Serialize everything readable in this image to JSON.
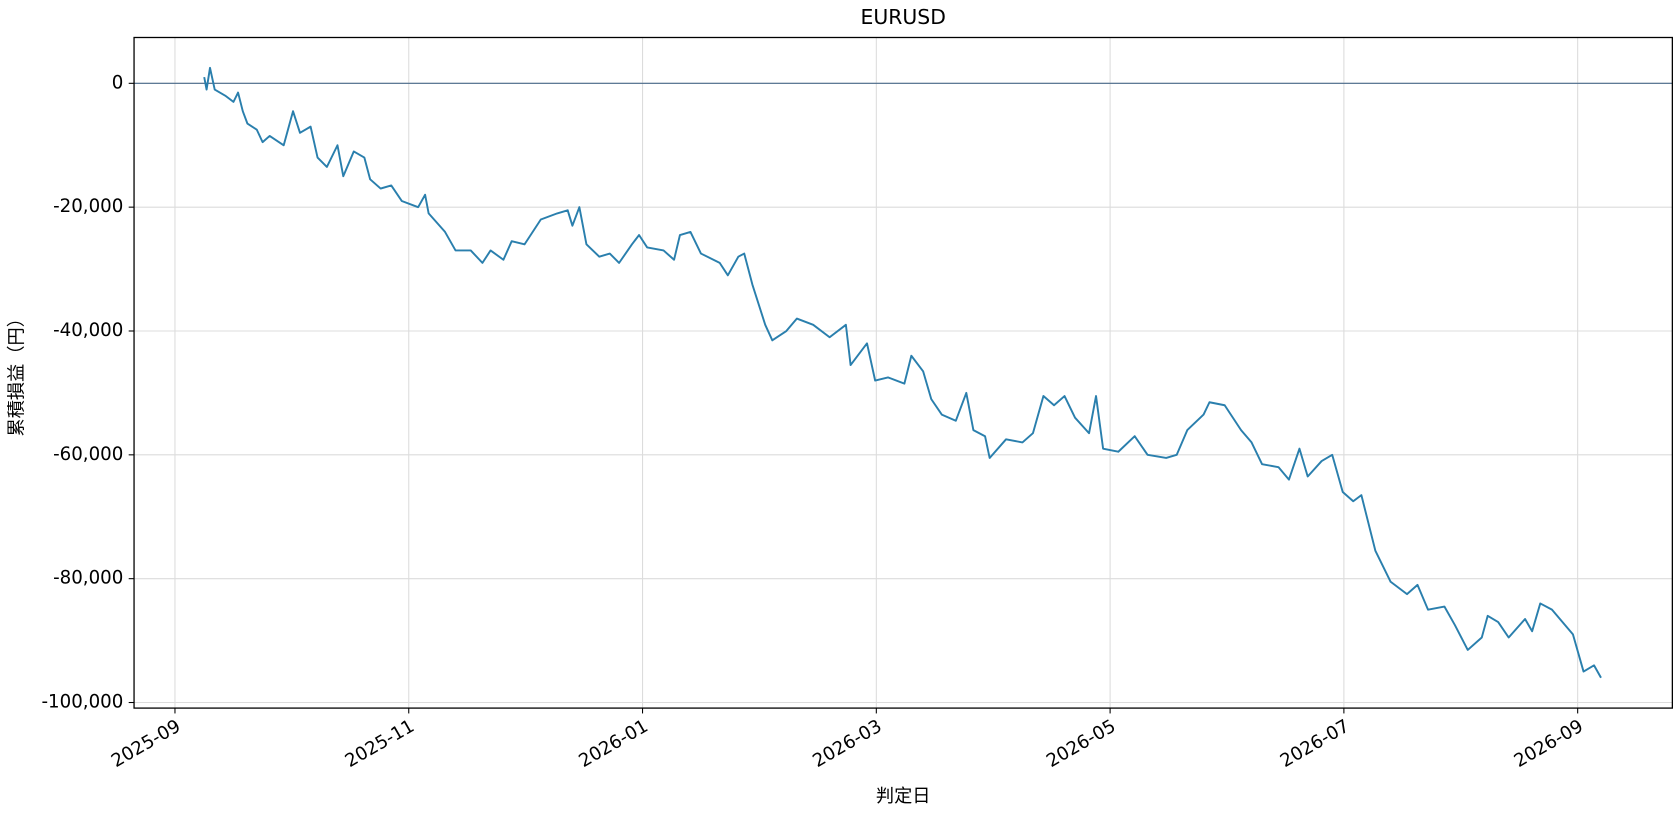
{
  "chart_data": {
    "type": "line",
    "title": "EURUSD",
    "xlabel": "判定日",
    "ylabel": "累積損益（円）",
    "x": [
      0.25,
      0.27,
      0.3,
      0.34,
      0.43,
      0.5,
      0.54,
      0.58,
      0.62,
      0.7,
      0.75,
      0.81,
      0.93,
      1.01,
      1.07,
      1.16,
      1.22,
      1.3,
      1.39,
      1.44,
      1.53,
      1.62,
      1.67,
      1.76,
      1.85,
      1.94,
      2.08,
      2.14,
      2.17,
      2.31,
      2.4,
      2.53,
      2.63,
      2.7,
      2.81,
      2.88,
      2.99,
      3.13,
      3.27,
      3.36,
      3.4,
      3.46,
      3.52,
      3.63,
      3.72,
      3.8,
      3.91,
      3.97,
      4.04,
      4.18,
      4.27,
      4.32,
      4.41,
      4.5,
      4.66,
      4.73,
      4.82,
      4.87,
      4.94,
      5.05,
      5.11,
      5.23,
      5.32,
      5.46,
      5.6,
      5.74,
      5.78,
      5.92,
      5.99,
      6.1,
      6.24,
      6.3,
      6.4,
      6.47,
      6.56,
      6.68,
      6.77,
      6.83,
      6.93,
      6.97,
      7.11,
      7.25,
      7.34,
      7.43,
      7.52,
      7.61,
      7.7,
      7.82,
      7.88,
      7.94,
      8.07,
      8.21,
      8.32,
      8.48,
      8.57,
      8.66,
      8.8,
      8.85,
      8.98,
      9.12,
      9.21,
      9.3,
      9.44,
      9.53,
      9.62,
      9.69,
      9.81,
      9.9,
      9.99,
      10.08,
      10.15,
      10.27,
      10.4,
      10.54,
      10.63,
      10.72,
      10.86,
      10.95,
      11.06,
      11.18,
      11.23,
      11.32,
      11.41,
      11.55,
      11.61,
      11.68,
      11.78,
      11.96,
      12.05,
      12.14,
      12.2
    ],
    "series": [
      {
        "name": "EURUSD",
        "color": "#2a7fad",
        "values": [
          1000,
          -1000,
          2500,
          -1000,
          -2000,
          -3000,
          -1500,
          -4500,
          -6500,
          -7500,
          -9500,
          -8500,
          -10000,
          -4500,
          -8000,
          -7000,
          -12000,
          -13500,
          -10000,
          -15000,
          -11000,
          -12000,
          -15500,
          -17000,
          -16500,
          -19000,
          -20000,
          -18000,
          -21000,
          -24000,
          -27000,
          -27000,
          -29000,
          -27000,
          -28500,
          -25500,
          -26000,
          -22000,
          -21000,
          -20500,
          -23000,
          -20000,
          -26000,
          -28000,
          -27500,
          -29000,
          -26000,
          -24500,
          -26500,
          -27000,
          -28500,
          -24500,
          -24000,
          -27500,
          -29000,
          -31000,
          -28000,
          -27500,
          -32500,
          -39000,
          -41500,
          -40000,
          -38000,
          -39000,
          -41000,
          -39000,
          -45500,
          -42000,
          -48000,
          -47500,
          -48500,
          -44000,
          -46500,
          -51000,
          -53500,
          -54500,
          -50000,
          -56000,
          -57000,
          -60500,
          -57500,
          -58000,
          -56500,
          -50500,
          -52000,
          -50500,
          -54000,
          -56500,
          -50500,
          -59000,
          -59500,
          -57000,
          -60000,
          -60500,
          -60000,
          -56000,
          -53500,
          -51500,
          -52000,
          -56000,
          -58000,
          -61500,
          -62000,
          -64000,
          -59000,
          -63500,
          -61000,
          -60000,
          -66000,
          -67500,
          -66500,
          -75500,
          -80500,
          -82500,
          -81000,
          -85000,
          -84500,
          -87500,
          -91500,
          -89500,
          -86000,
          -87000,
          -89500,
          -86500,
          -88500,
          -84000,
          -85000,
          -89000,
          -95000,
          -94000,
          -96000
        ]
      }
    ],
    "xlim": [
      -0.35,
      12.81
    ],
    "xticks": [
      {
        "value": 0,
        "label": "2025-09"
      },
      {
        "value": 2,
        "label": "2025-11"
      },
      {
        "value": 4,
        "label": "2026-01"
      },
      {
        "value": 6,
        "label": "2026-03"
      },
      {
        "value": 8,
        "label": "2026-05"
      },
      {
        "value": 10,
        "label": "2026-07"
      },
      {
        "value": 12,
        "label": "2026-09"
      }
    ],
    "ylim": [
      -100900,
      7400
    ],
    "yticks": [
      {
        "value": -100000,
        "label": "-100,000"
      },
      {
        "value": -80000,
        "label": "-80,000"
      },
      {
        "value": -60000,
        "label": "-60,000"
      },
      {
        "value": -40000,
        "label": "-40,000"
      },
      {
        "value": -20000,
        "label": "-20,000"
      },
      0
    ],
    "hline": 0,
    "hline_color": "#4a6a8a",
    "grid": true
  }
}
